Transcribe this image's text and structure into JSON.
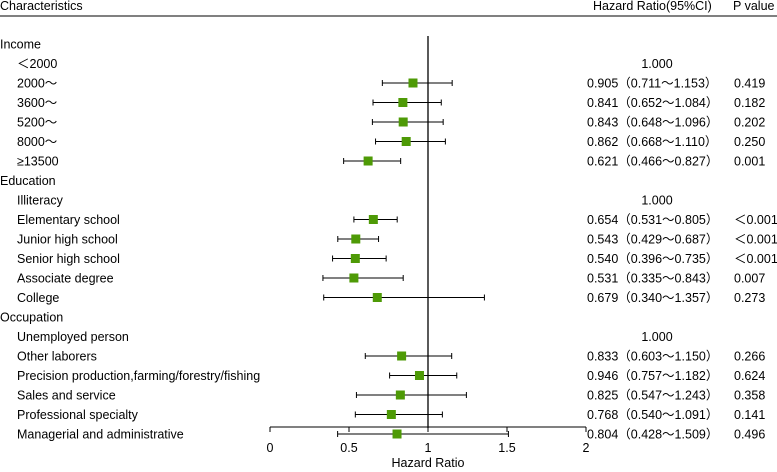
{
  "chart_data": {
    "type": "forest",
    "headers": {
      "characteristics": "Characteristics",
      "hr_ci": "Hazard Ratio(95%CI)",
      "p_value": "P value"
    },
    "xlabel": "Hazard Ratio",
    "xlim": [
      0,
      2
    ],
    "xticks": [
      "0",
      "0.5",
      "1",
      "1.5",
      "2"
    ],
    "reference_line": 1,
    "marker_color": "#4E9A06",
    "rows": [
      {
        "type": "group",
        "label": "Income"
      },
      {
        "type": "item",
        "label": "＜2000",
        "hr_text": "1.000"
      },
      {
        "type": "item",
        "label": "2000～",
        "hr": 0.905,
        "lo": 0.711,
        "hi": 1.153,
        "hr_text": "0.905（0.711～1.153）",
        "p": "0.419"
      },
      {
        "type": "item",
        "label": "3600～",
        "hr": 0.841,
        "lo": 0.652,
        "hi": 1.084,
        "hr_text": "0.841（0.652～1.084）",
        "p": "0.182"
      },
      {
        "type": "item",
        "label": "5200～",
        "hr": 0.843,
        "lo": 0.648,
        "hi": 1.096,
        "hr_text": "0.843（0.648～1.096）",
        "p": "0.202"
      },
      {
        "type": "item",
        "label": "8000～",
        "hr": 0.862,
        "lo": 0.668,
        "hi": 1.11,
        "hr_text": "0.862（0.668～1.110）",
        "p": "0.250"
      },
      {
        "type": "item",
        "label": "≥13500",
        "hr": 0.621,
        "lo": 0.466,
        "hi": 0.827,
        "hr_text": "0.621（0.466～0.827）",
        "p": "0.001"
      },
      {
        "type": "group",
        "label": "Education"
      },
      {
        "type": "item",
        "label": "Illiteracy",
        "hr_text": "1.000"
      },
      {
        "type": "item",
        "label": "Elementary school",
        "hr": 0.654,
        "lo": 0.531,
        "hi": 0.805,
        "hr_text": "0.654（0.531～0.805）",
        "p": "＜0.001"
      },
      {
        "type": "item",
        "label": "Junior high school",
        "hr": 0.543,
        "lo": 0.429,
        "hi": 0.687,
        "hr_text": "0.543（0.429～0.687）",
        "p": "＜0.001"
      },
      {
        "type": "item",
        "label": "Senior high school",
        "hr": 0.54,
        "lo": 0.396,
        "hi": 0.735,
        "hr_text": "0.540（0.396～0.735）",
        "p": "＜0.001"
      },
      {
        "type": "item",
        "label": "Associate degree",
        "hr": 0.531,
        "lo": 0.335,
        "hi": 0.843,
        "hr_text": "0.531（0.335～0.843）",
        "p": "0.007"
      },
      {
        "type": "item",
        "label": "College",
        "hr": 0.679,
        "lo": 0.34,
        "hi": 1.357,
        "hr_text": "0.679（0.340～1.357）",
        "p": "0.273"
      },
      {
        "type": "group",
        "label": "Occupation"
      },
      {
        "type": "item",
        "label": "Unemployed person",
        "hr_text": "1.000"
      },
      {
        "type": "item",
        "label": "Other laborers",
        "hr": 0.833,
        "lo": 0.603,
        "hi": 1.15,
        "hr_text": "0.833（0.603～1.150）",
        "p": "0.266"
      },
      {
        "type": "item",
        "label": "Precision production,farming/forestry/fishing",
        "hr": 0.946,
        "lo": 0.757,
        "hi": 1.182,
        "hr_text": "0.946（0.757～1.182）",
        "p": "0.624"
      },
      {
        "type": "item",
        "label": "Sales and service",
        "hr": 0.825,
        "lo": 0.547,
        "hi": 1.243,
        "hr_text": "0.825（0.547～1.243）",
        "p": "0.358"
      },
      {
        "type": "item",
        "label": "Professional specialty",
        "hr": 0.768,
        "lo": 0.54,
        "hi": 1.091,
        "hr_text": "0.768（0.540～1.091）",
        "p": "0.141"
      },
      {
        "type": "item",
        "label": "Managerial and administrative",
        "hr": 0.804,
        "lo": 0.428,
        "hi": 1.509,
        "hr_text": "0.804（0.428～1.509）",
        "p": "0.496"
      }
    ]
  }
}
